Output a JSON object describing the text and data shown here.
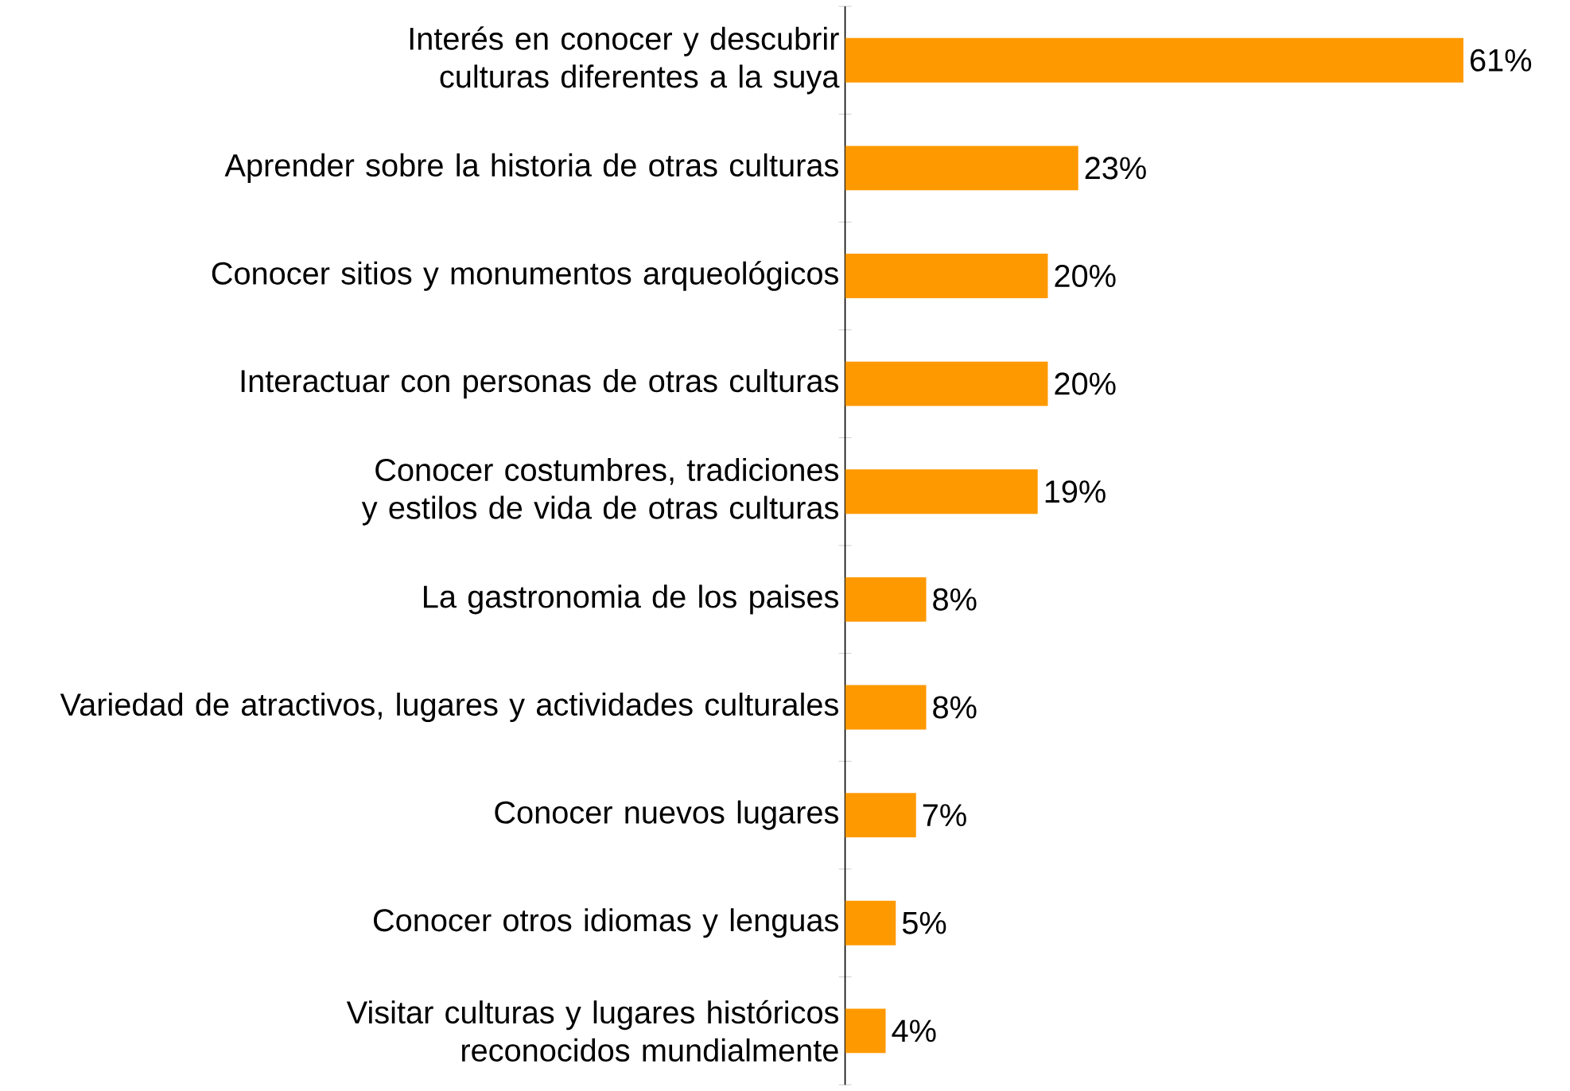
{
  "chart_data": {
    "type": "bar",
    "orientation": "horizontal",
    "categories": [
      "Interés en conocer y descubrir culturas diferentes a la suya",
      "Aprender sobre la historia de otras culturas",
      "Conocer sitios y monumentos arqueológicos",
      "Interactuar con personas de otras culturas",
      "Conocer costumbres, tradiciones y estilos de vida de otras culturas",
      "La gastronomia de los paises",
      "Variedad de atractivos, lugares y actividades culturales",
      "Conocer nuevos lugares",
      "Conocer otros idiomas y lenguas",
      "Visitar culturas y lugares históricos reconocidos mundialmente"
    ],
    "values": [
      61,
      23,
      20,
      20,
      19,
      8,
      8,
      7,
      5,
      4
    ],
    "value_labels": [
      "61%",
      "23%",
      "20%",
      "20%",
      "19%",
      "8%",
      "8%",
      "7%",
      "5%",
      "4%"
    ],
    "color": "#ff9900",
    "grid": false
  }
}
